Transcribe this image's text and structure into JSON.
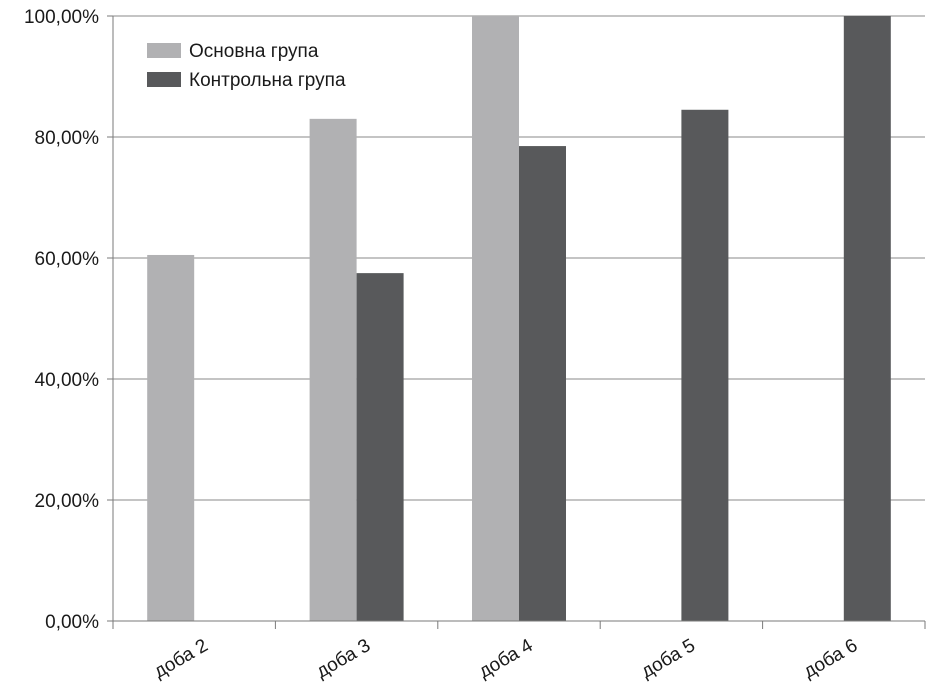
{
  "chart_data": {
    "type": "bar",
    "categories": [
      "доба 2",
      "доба 3",
      "доба 4",
      "доба 5",
      "доба 6"
    ],
    "series": [
      {
        "name": "Основна група",
        "color": "#b1b1b3",
        "values": [
          60.5,
          83.0,
          100.0,
          null,
          null
        ]
      },
      {
        "name": "Контрольна група",
        "color": "#58595b",
        "values": [
          null,
          57.5,
          78.5,
          84.5,
          100.0
        ]
      }
    ],
    "ylim": [
      0,
      100
    ],
    "yticks": [
      0,
      20,
      40,
      60,
      80,
      100
    ],
    "ytick_labels": [
      "0,00%",
      "20,00%",
      "40,00%",
      "60,00%",
      "80,00%",
      "100,00%"
    ],
    "grid": true,
    "legend_position": "top-left",
    "title": "",
    "xlabel": "",
    "ylabel": ""
  }
}
